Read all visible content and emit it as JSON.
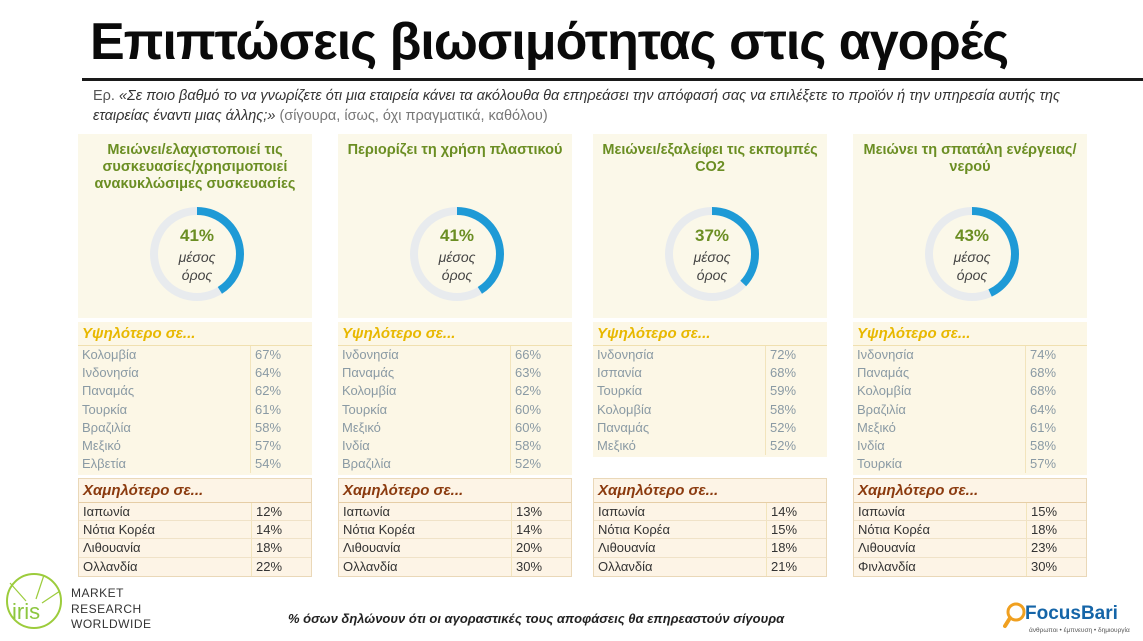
{
  "title": "Επιπτώσεις βιωσιμότητας στις αγορές",
  "question": {
    "prefix": "Ερ.",
    "text": "«Σε ποιο βαθμό το να γνωρίζετε ότι μια εταιρεία κάνει τα ακόλουθα θα επηρεάσει την απόφασή σας να επιλέξετε το προϊόν ή την υπηρεσία αυτής της εταιρείας έναντι μιας άλλης;»",
    "scale": "(σίγουρα, ίσως, όχι πραγματικά, καθόλου)"
  },
  "footnote": "% όσων δηλώνουν ότι οι αγοραστικές τους αποφάσεις θα επηρεαστούν σίγουρα",
  "logos": {
    "iris_lines": [
      "MARKET",
      "RESEARCH",
      "WORLDWIDE"
    ],
    "iris_word": "iris",
    "focus_name": "FocusBari",
    "focus_tag": "άνθρωποι • έμπνευση • δημιουργία"
  },
  "colors": {
    "title_green": "#6b8e23",
    "donut_blue": "#1e9ad6",
    "donut_track": "#e8ebee",
    "high_yellow": "#e8b800",
    "low_brown": "#8b3a0e"
  },
  "chart_data": [
    {
      "type": "pie",
      "title": "Μειώνει/ελαχιστοποιεί τις συσκευασίες/χρησιμοποιεί ανακυκλώσιμες συσκευασίες",
      "value": 41,
      "value_label": "41%",
      "avg_label": "μέσος όρος",
      "high": {
        "title": "Υψηλότερο σε...",
        "rows": [
          {
            "country": "Κολομβία",
            "value": "67%"
          },
          {
            "country": "Ινδονησία",
            "value": "64%"
          },
          {
            "country": "Παναμάς",
            "value": "62%"
          },
          {
            "country": "Τουρκία",
            "value": "61%"
          },
          {
            "country": "Βραζιλία",
            "value": "58%"
          },
          {
            "country": "Μεξικό",
            "value": "57%"
          },
          {
            "country": "Ελβετία",
            "value": "54%"
          }
        ]
      },
      "low": {
        "title": "Χαμηλότερο σε...",
        "rows": [
          {
            "country": "Ιαπωνία",
            "value": "12%"
          },
          {
            "country": "Νότια Κορέα",
            "value": "14%"
          },
          {
            "country": "Λιθουανία",
            "value": "18%"
          },
          {
            "country": "Ολλανδία",
            "value": "22%"
          }
        ]
      }
    },
    {
      "type": "pie",
      "title": "Περιορίζει τη χρήση πλαστικού",
      "value": 41,
      "value_label": "41%",
      "avg_label": "μέσος όρος",
      "high": {
        "title": "Υψηλότερο σε...",
        "rows": [
          {
            "country": "Ινδονησία",
            "value": "66%"
          },
          {
            "country": "Παναμάς",
            "value": "63%"
          },
          {
            "country": "Κολομβία",
            "value": "62%"
          },
          {
            "country": "Τουρκία",
            "value": "60%"
          },
          {
            "country": "Μεξικό",
            "value": "60%"
          },
          {
            "country": "Ινδία",
            "value": "58%"
          },
          {
            "country": "Βραζιλία",
            "value": "52%"
          }
        ]
      },
      "low": {
        "title": "Χαμηλότερο σε...",
        "rows": [
          {
            "country": "Ιαπωνία",
            "value": "13%"
          },
          {
            "country": "Νότια Κορέα",
            "value": "14%"
          },
          {
            "country": "Λιθουανία",
            "value": "20%"
          },
          {
            "country": "Ολλανδία",
            "value": "30%"
          }
        ]
      }
    },
    {
      "type": "pie",
      "title": "Μειώνει/εξαλείφει τις εκπομπές CO2",
      "value": 37,
      "value_label": "37%",
      "avg_label": "μέσος όρος",
      "high": {
        "title": "Υψηλότερο σε...",
        "rows": [
          {
            "country": "Ινδονησία",
            "value": "72%"
          },
          {
            "country": "Ισπανία",
            "value": "68%"
          },
          {
            "country": "Τουρκία",
            "value": "59%"
          },
          {
            "country": "Κολομβία",
            "value": "58%"
          },
          {
            "country": "Παναμάς",
            "value": "52%"
          },
          {
            "country": "Μεξικό",
            "value": "52%"
          }
        ]
      },
      "low": {
        "title": "Χαμηλότερο σε...",
        "rows": [
          {
            "country": "Ιαπωνία",
            "value": "14%"
          },
          {
            "country": "Νότια Κορέα",
            "value": "15%"
          },
          {
            "country": "Λιθουανία",
            "value": "18%"
          },
          {
            "country": "Ολλανδία",
            "value": "21%"
          }
        ]
      }
    },
    {
      "type": "pie",
      "title": "Μειώνει τη σπατάλη ενέργειας/νερού",
      "value": 43,
      "value_label": "43%",
      "avg_label": "μέσος όρος",
      "high": {
        "title": "Υψηλότερο σε...",
        "rows": [
          {
            "country": "Ινδονησία",
            "value": "74%"
          },
          {
            "country": "Παναμάς",
            "value": "68%"
          },
          {
            "country": "Κολομβία",
            "value": "68%"
          },
          {
            "country": "Βραζιλία",
            "value": "64%"
          },
          {
            "country": "Μεξικό",
            "value": "61%"
          },
          {
            "country": "Ινδία",
            "value": "58%"
          },
          {
            "country": "Τουρκία",
            "value": "57%"
          }
        ]
      },
      "low": {
        "title": "Χαμηλότερο σε...",
        "rows": [
          {
            "country": "Ιαπωνία",
            "value": "15%"
          },
          {
            "country": "Νότια Κορέα",
            "value": "18%"
          },
          {
            "country": "Λιθουανία",
            "value": "23%"
          },
          {
            "country": "Φινλανδία",
            "value": "30%"
          }
        ]
      }
    }
  ]
}
